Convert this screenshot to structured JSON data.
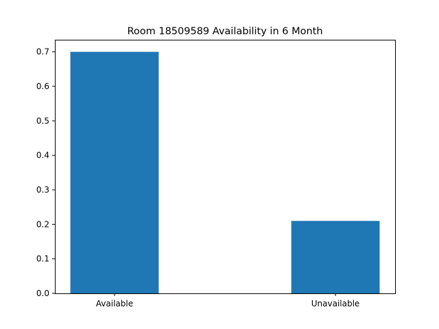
{
  "chart_data": {
    "type": "bar",
    "title": "Room 18509589 Availability in 6 Month",
    "xlabel": "",
    "ylabel": "",
    "categories": [
      "Available",
      "Unavailable"
    ],
    "values": [
      0.7,
      0.21
    ],
    "ylim": [
      0,
      0.735
    ],
    "yticks": [
      "0.0",
      "0.1",
      "0.2",
      "0.3",
      "0.4",
      "0.5",
      "0.6",
      "0.7"
    ],
    "bar_color": "#1f77b4",
    "grid": false,
    "legend": "none"
  }
}
